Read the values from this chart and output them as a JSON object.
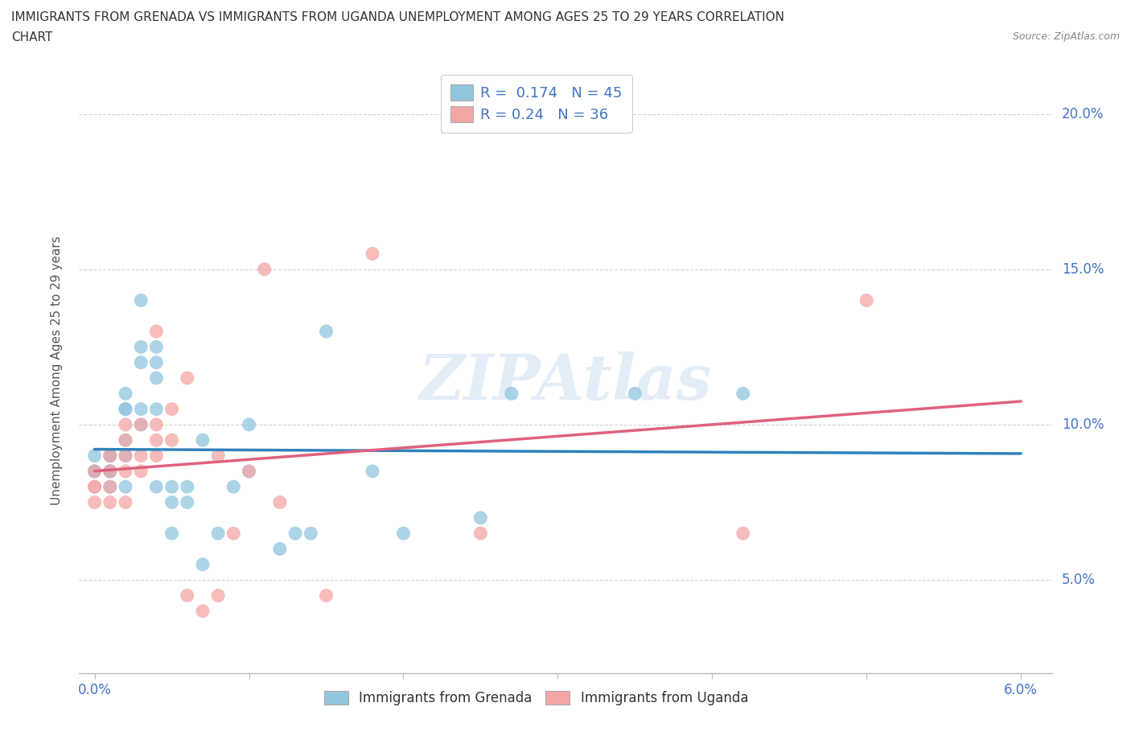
{
  "title_line1": "IMMIGRANTS FROM GRENADA VS IMMIGRANTS FROM UGANDA UNEMPLOYMENT AMONG AGES 25 TO 29 YEARS CORRELATION",
  "title_line2": "CHART",
  "source_text": "Source: ZipAtlas.com",
  "ylabel": "Unemployment Among Ages 25 to 29 years",
  "watermark": "ZIPAtlas",
  "grenada_R": 0.174,
  "grenada_N": 45,
  "uganda_R": 0.24,
  "uganda_N": 36,
  "xlim": [
    -0.001,
    0.062
  ],
  "ylim": [
    0.02,
    0.215
  ],
  "grenada_color": "#92c5de",
  "uganda_color": "#f4a6a6",
  "grenada_line_color": "#3182bd",
  "uganda_line_color": "#e0607e",
  "background_color": "#ffffff",
  "grid_color": "#d0d0d0",
  "grenada_x": [
    0.0,
    0.0,
    0.0,
    0.001,
    0.001,
    0.001,
    0.001,
    0.001,
    0.002,
    0.002,
    0.002,
    0.002,
    0.002,
    0.002,
    0.003,
    0.003,
    0.003,
    0.003,
    0.003,
    0.004,
    0.004,
    0.004,
    0.004,
    0.004,
    0.005,
    0.005,
    0.005,
    0.006,
    0.006,
    0.007,
    0.007,
    0.008,
    0.009,
    0.01,
    0.01,
    0.012,
    0.013,
    0.014,
    0.015,
    0.018,
    0.02,
    0.025,
    0.027,
    0.035,
    0.042
  ],
  "grenada_y": [
    0.09,
    0.085,
    0.085,
    0.085,
    0.09,
    0.09,
    0.085,
    0.08,
    0.105,
    0.11,
    0.105,
    0.095,
    0.09,
    0.08,
    0.14,
    0.125,
    0.12,
    0.105,
    0.1,
    0.125,
    0.12,
    0.115,
    0.105,
    0.08,
    0.08,
    0.075,
    0.065,
    0.08,
    0.075,
    0.095,
    0.055,
    0.065,
    0.08,
    0.1,
    0.085,
    0.06,
    0.065,
    0.065,
    0.13,
    0.085,
    0.065,
    0.07,
    0.11,
    0.11,
    0.11
  ],
  "uganda_x": [
    0.0,
    0.0,
    0.0,
    0.0,
    0.001,
    0.001,
    0.001,
    0.001,
    0.002,
    0.002,
    0.002,
    0.002,
    0.002,
    0.003,
    0.003,
    0.003,
    0.004,
    0.004,
    0.004,
    0.004,
    0.005,
    0.005,
    0.006,
    0.006,
    0.007,
    0.008,
    0.008,
    0.009,
    0.01,
    0.011,
    0.012,
    0.015,
    0.018,
    0.025,
    0.042,
    0.05
  ],
  "uganda_y": [
    0.08,
    0.075,
    0.085,
    0.08,
    0.08,
    0.075,
    0.085,
    0.09,
    0.09,
    0.085,
    0.075,
    0.095,
    0.1,
    0.09,
    0.1,
    0.085,
    0.095,
    0.13,
    0.1,
    0.09,
    0.095,
    0.105,
    0.045,
    0.115,
    0.04,
    0.045,
    0.09,
    0.065,
    0.085,
    0.15,
    0.075,
    0.045,
    0.155,
    0.065,
    0.065,
    0.14
  ],
  "ytick_positions": [
    0.05,
    0.1,
    0.15,
    0.2
  ],
  "ytick_labels": [
    "5.0%",
    "10.0%",
    "15.0%",
    "20.0%"
  ],
  "xtick_positions": [
    0.0,
    0.01,
    0.02,
    0.03,
    0.04,
    0.05,
    0.06
  ],
  "xtick_labels_show": [
    "0.0%",
    "",
    "",
    "",
    "",
    "",
    "6.0%"
  ]
}
